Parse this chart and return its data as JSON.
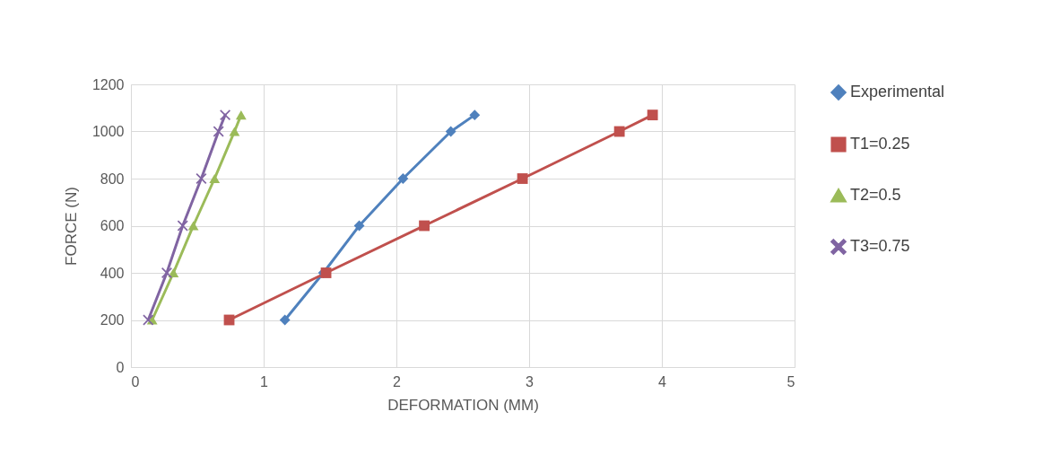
{
  "chart_data": {
    "type": "line",
    "xlabel": "DEFORMATION (MM)",
    "ylabel": "FORCE (N)",
    "xlim": [
      0,
      5
    ],
    "xticks": [
      0,
      1,
      2,
      3,
      4,
      5
    ],
    "ylim": [
      0,
      1200
    ],
    "yticks": [
      0,
      200,
      400,
      600,
      800,
      1000,
      1200
    ],
    "grid": true,
    "legend": "right",
    "series": [
      {
        "name": "Experimental",
        "color": "#4f81bd",
        "marker": "diamond",
        "x": [
          1.16,
          1.45,
          1.72,
          2.05,
          2.41,
          2.59
        ],
        "values": [
          200,
          400,
          600,
          800,
          1000,
          1070
        ]
      },
      {
        "name": "T1=0.25",
        "color": "#c0504d",
        "marker": "square",
        "x": [
          0.74,
          1.47,
          2.21,
          2.95,
          3.68,
          3.93
        ],
        "values": [
          200,
          400,
          600,
          800,
          1000,
          1070
        ]
      },
      {
        "name": "T2=0.5",
        "color": "#9bbb59",
        "marker": "triangle",
        "x": [
          0.16,
          0.32,
          0.47,
          0.63,
          0.78,
          0.83
        ],
        "values": [
          200,
          400,
          600,
          800,
          1000,
          1070
        ]
      },
      {
        "name": "T3=0.75",
        "color": "#8064a2",
        "marker": "cross",
        "x": [
          0.13,
          0.27,
          0.39,
          0.53,
          0.66,
          0.71
        ],
        "values": [
          200,
          400,
          600,
          800,
          1000,
          1070
        ]
      }
    ]
  }
}
